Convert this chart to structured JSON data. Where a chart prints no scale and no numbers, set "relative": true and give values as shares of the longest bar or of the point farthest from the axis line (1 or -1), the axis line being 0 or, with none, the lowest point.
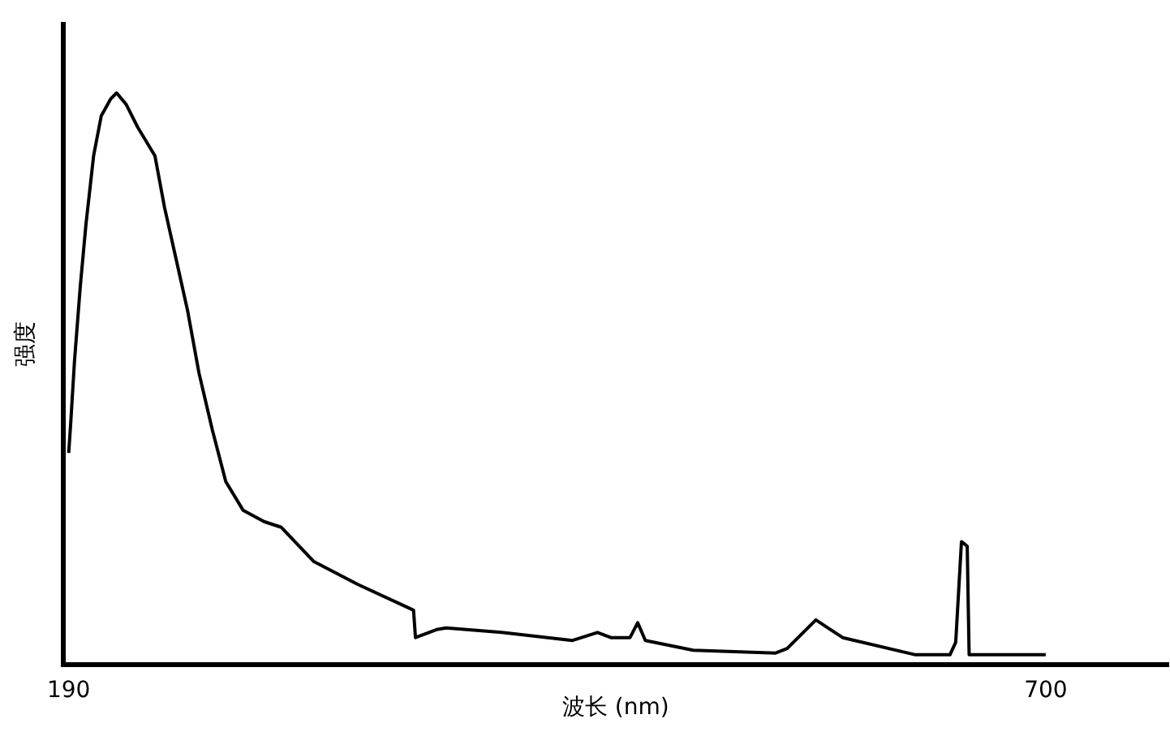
{
  "chart_data": {
    "type": "line",
    "relative": true,
    "xlabel": "波长 (nm)",
    "ylabel": "强度",
    "xlim": [
      187,
      764
    ],
    "xticks": [
      190,
      700
    ],
    "grid": false,
    "legend": false,
    "marker": "none",
    "line_style": "solid",
    "series": [
      {
        "color": "#000000",
        "x": [
          190,
          191,
          193,
          196,
          199,
          203,
          207,
          212,
          215,
          220,
          226,
          235,
          240,
          246,
          252,
          258,
          265,
          272,
          281,
          292,
          301,
          318,
          341,
          370,
          371,
          382,
          387,
          416,
          453,
          466,
          473,
          483,
          487,
          491,
          516,
          559,
          565,
          580,
          594,
          632,
          650,
          653,
          656,
          659,
          660,
          700
        ],
        "values": [
          0.37,
          0.42,
          0.53,
          0.66,
          0.77,
          0.89,
          0.96,
          0.99,
          1,
          0.98,
          0.94,
          0.89,
          0.8,
          0.71,
          0.62,
          0.51,
          0.41,
          0.32,
          0.27,
          0.25,
          0.24,
          0.18,
          0.14,
          0.095,
          0.047,
          0.061,
          0.064,
          0.056,
          0.042,
          0.056,
          0.047,
          0.047,
          0.073,
          0.042,
          0.025,
          0.02,
          0.028,
          0.078,
          0.047,
          0.017,
          0.017,
          0.039,
          0.215,
          0.207,
          0.017,
          0.017
        ]
      }
    ]
  }
}
